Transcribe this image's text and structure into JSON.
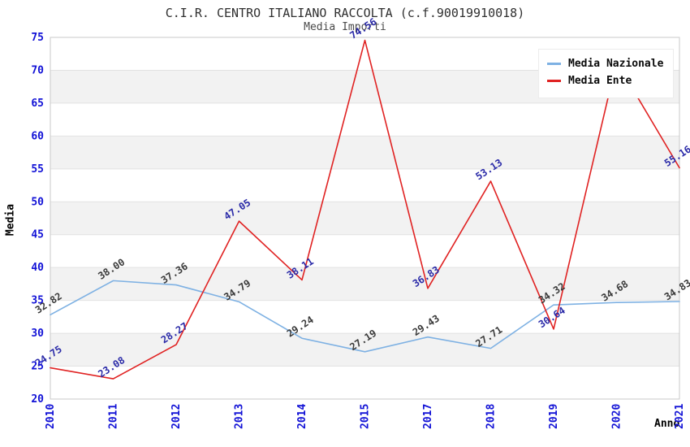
{
  "header": {
    "title": "C.I.R. CENTRO ITALIANO RACCOLTA (c.f.90019910018)",
    "subtitle": "Media Importi"
  },
  "legend": {
    "items": [
      {
        "label": "Media Nazionale",
        "color": "#7eb1e3"
      },
      {
        "label": "Media Ente",
        "color": "#e02222"
      }
    ]
  },
  "axes": {
    "ylabel": "Media",
    "xlabel": "Anno",
    "yticks": [
      20,
      25,
      30,
      35,
      40,
      45,
      50,
      55,
      60,
      65,
      70,
      75
    ],
    "tick_color": "#1212d6"
  },
  "chart_data": {
    "type": "line",
    "title": "C.I.R. CENTRO ITALIANO RACCOLTA (c.f.90019910018)",
    "subtitle": "Media Importi",
    "xlabel": "Anno",
    "ylabel": "Media",
    "ylim": [
      20,
      75
    ],
    "grid": true,
    "legend_position": "top-right",
    "categories": [
      "2010",
      "2011",
      "2012",
      "2013",
      "2014",
      "2015",
      "2017",
      "2018",
      "2019",
      "2020",
      "2021"
    ],
    "series": [
      {
        "name": "Media Nazionale",
        "color": "#7eb1e3",
        "label_color": "#3a3a3a",
        "values": [
          32.82,
          38.0,
          37.36,
          34.79,
          29.24,
          27.19,
          29.43,
          27.71,
          34.32,
          34.68,
          34.83
        ],
        "labels": [
          "32.82",
          "38.00",
          "37.36",
          "34.79",
          "29.24",
          "27.19",
          "29.43",
          "27.71",
          "34.32",
          "34.68",
          "34.83"
        ]
      },
      {
        "name": "Media Ente",
        "color": "#e02222",
        "label_color": "#2a2aa8",
        "values": [
          24.75,
          23.08,
          28.27,
          47.05,
          38.11,
          74.56,
          36.83,
          53.13,
          30.64,
          71.3,
          55.16
        ],
        "labels": [
          "24.75",
          "23.08",
          "28.27",
          "47.05",
          "38.11",
          "74.56",
          "36.83",
          "53.13",
          "30.64",
          "",
          "55.16"
        ]
      }
    ],
    "band_fill": "#f2f2f2",
    "grid_color": "#e2e2e2",
    "border_color": "#c9c9c9",
    "tick_color": "#1212d6"
  }
}
